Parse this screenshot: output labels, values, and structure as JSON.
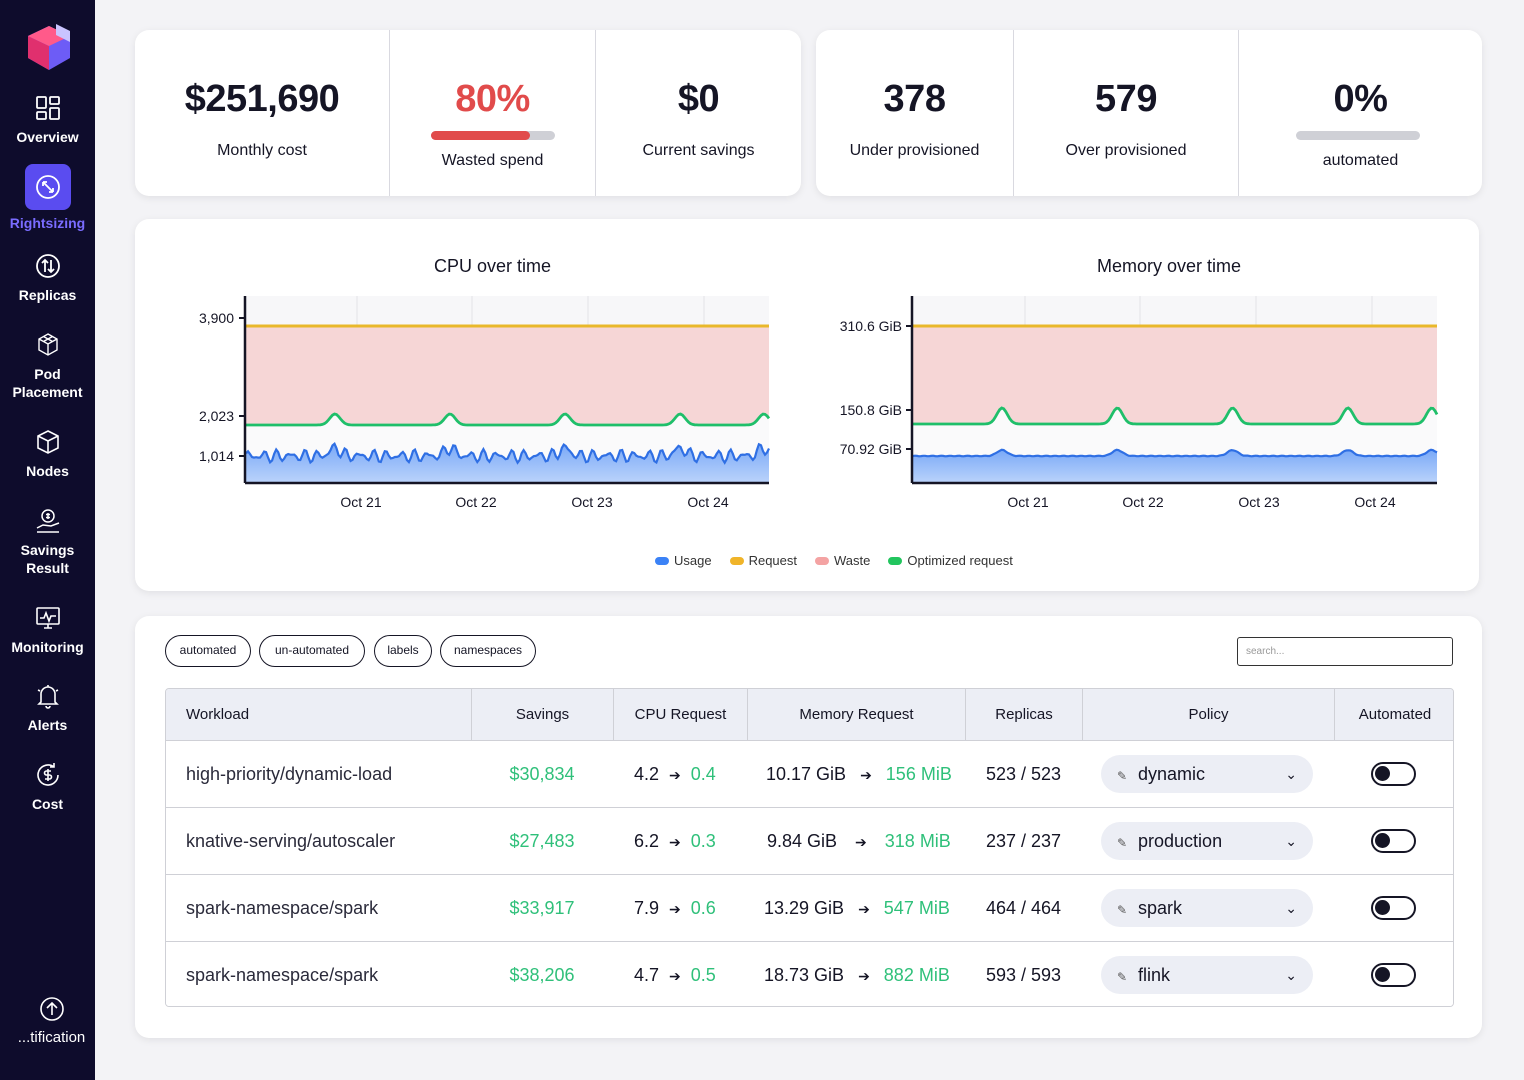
{
  "sidebar": {
    "items": [
      {
        "label": "Overview",
        "icon": "grid-icon"
      },
      {
        "label": "Rightsizing",
        "icon": "resize-icon",
        "active": true
      },
      {
        "label": "Replicas",
        "icon": "swap-arrows-icon"
      },
      {
        "label": "Pod Placement",
        "icon": "cubes-icon"
      },
      {
        "label": "Nodes",
        "icon": "cube-icon"
      },
      {
        "label": "Savings Result",
        "icon": "money-hand-icon"
      },
      {
        "label": "Monitoring",
        "icon": "monitor-chart-icon"
      },
      {
        "label": "Alerts",
        "icon": "bell-icon"
      },
      {
        "label": "Cost",
        "icon": "dollar-cycle-icon"
      },
      {
        "label": "...tification",
        "icon": "arrow-up-circle-icon"
      }
    ],
    "accent": "#5a4cf0"
  },
  "stats_left": {
    "monthly_cost": {
      "value": "$251,690",
      "label": "Monthly cost"
    },
    "wasted_spend": {
      "value": "80%",
      "label": "Wasted spend",
      "fraction": 0.8
    },
    "current_savings": {
      "value": "$0",
      "label": "Current savings"
    }
  },
  "stats_right": {
    "under_provisioned": {
      "value": "378",
      "label": "Under provisioned"
    },
    "over_provisioned": {
      "value": "579",
      "label": "Over provisioned"
    },
    "automated": {
      "value": "0%",
      "label": "automated",
      "fraction": 0
    }
  },
  "charts": {
    "cpu": {
      "title": "CPU over time",
      "yticks": [
        "3,900",
        "2,023",
        "1,014"
      ],
      "xticks": [
        "Oct 21",
        "Oct 22",
        "Oct 23",
        "Oct 24"
      ]
    },
    "memory": {
      "title": "Memory over time",
      "yticks": [
        "310.6 GiB",
        "150.8 GiB",
        "70.92 GiB"
      ],
      "xticks": [
        "Oct 21",
        "Oct 22",
        "Oct 23",
        "Oct 24"
      ]
    },
    "legend": [
      {
        "label": "Usage",
        "color": "#3b82f6"
      },
      {
        "label": "Request",
        "color": "#f0b429"
      },
      {
        "label": "Waste",
        "color": "#f4a3a3"
      },
      {
        "label": "Optimized request",
        "color": "#22c55e"
      }
    ]
  },
  "chart_data": [
    {
      "type": "area",
      "title": "CPU over time",
      "x": [
        "Oct 21",
        "Oct 22",
        "Oct 23",
        "Oct 24"
      ],
      "ytick_values": [
        3900,
        2023,
        1014
      ],
      "series": [
        {
          "name": "Request",
          "values": [
            3900,
            3900,
            3900,
            3900
          ]
        },
        {
          "name": "Optimized request",
          "values": [
            2023,
            2023,
            2023,
            2023
          ]
        },
        {
          "name": "Usage",
          "values": [
            1014,
            1014,
            1014,
            1014
          ]
        }
      ],
      "legend_position": "bottom"
    },
    {
      "type": "area",
      "title": "Memory over time",
      "x": [
        "Oct 21",
        "Oct 22",
        "Oct 23",
        "Oct 24"
      ],
      "ytick_values": [
        310.6,
        150.8,
        70.92
      ],
      "series": [
        {
          "name": "Request",
          "values": [
            310.6,
            310.6,
            310.6,
            310.6
          ]
        },
        {
          "name": "Optimized request",
          "values": [
            150.8,
            150.8,
            150.8,
            150.8
          ]
        },
        {
          "name": "Usage",
          "values": [
            70.92,
            70.92,
            70.92,
            70.92
          ]
        }
      ],
      "legend_position": "bottom"
    }
  ],
  "filters": {
    "chips": [
      "automated",
      "un-automated",
      "labels",
      "namespaces"
    ],
    "search_placeholder": "search..."
  },
  "table": {
    "headers": [
      "Workload",
      "Savings",
      "CPU Request",
      "Memory Request",
      "Replicas",
      "Policy",
      "Automated"
    ],
    "rows": [
      {
        "workload": "high-priority/dynamic-load",
        "savings": "$30,834",
        "cpu_from": "4.2",
        "cpu_to": "0.4",
        "mem_from": "10.17 GiB",
        "mem_to": "156 MiB",
        "replicas": "523 / 523",
        "policy": "dynamic",
        "automated": false
      },
      {
        "workload": "knative-serving/autoscaler",
        "savings": "$27,483",
        "cpu_from": "6.2",
        "cpu_to": "0.3",
        "mem_from": "9.84 GiB",
        "mem_to": "318 MiB",
        "replicas": "237 / 237",
        "policy": "production",
        "automated": false
      },
      {
        "workload": "spark-namespace/spark",
        "savings": "$33,917",
        "cpu_from": "7.9",
        "cpu_to": "0.6",
        "mem_from": "13.29 GiB",
        "mem_to": "547 MiB",
        "replicas": "464 / 464",
        "policy": "spark",
        "automated": false
      },
      {
        "workload": "spark-namespace/spark",
        "savings": "$38,206",
        "cpu_from": "4.7",
        "cpu_to": "0.5",
        "mem_from": "18.73 GiB",
        "mem_to": "882 MiB",
        "replicas": "593 / 593",
        "policy": "flink",
        "automated": false
      }
    ]
  }
}
